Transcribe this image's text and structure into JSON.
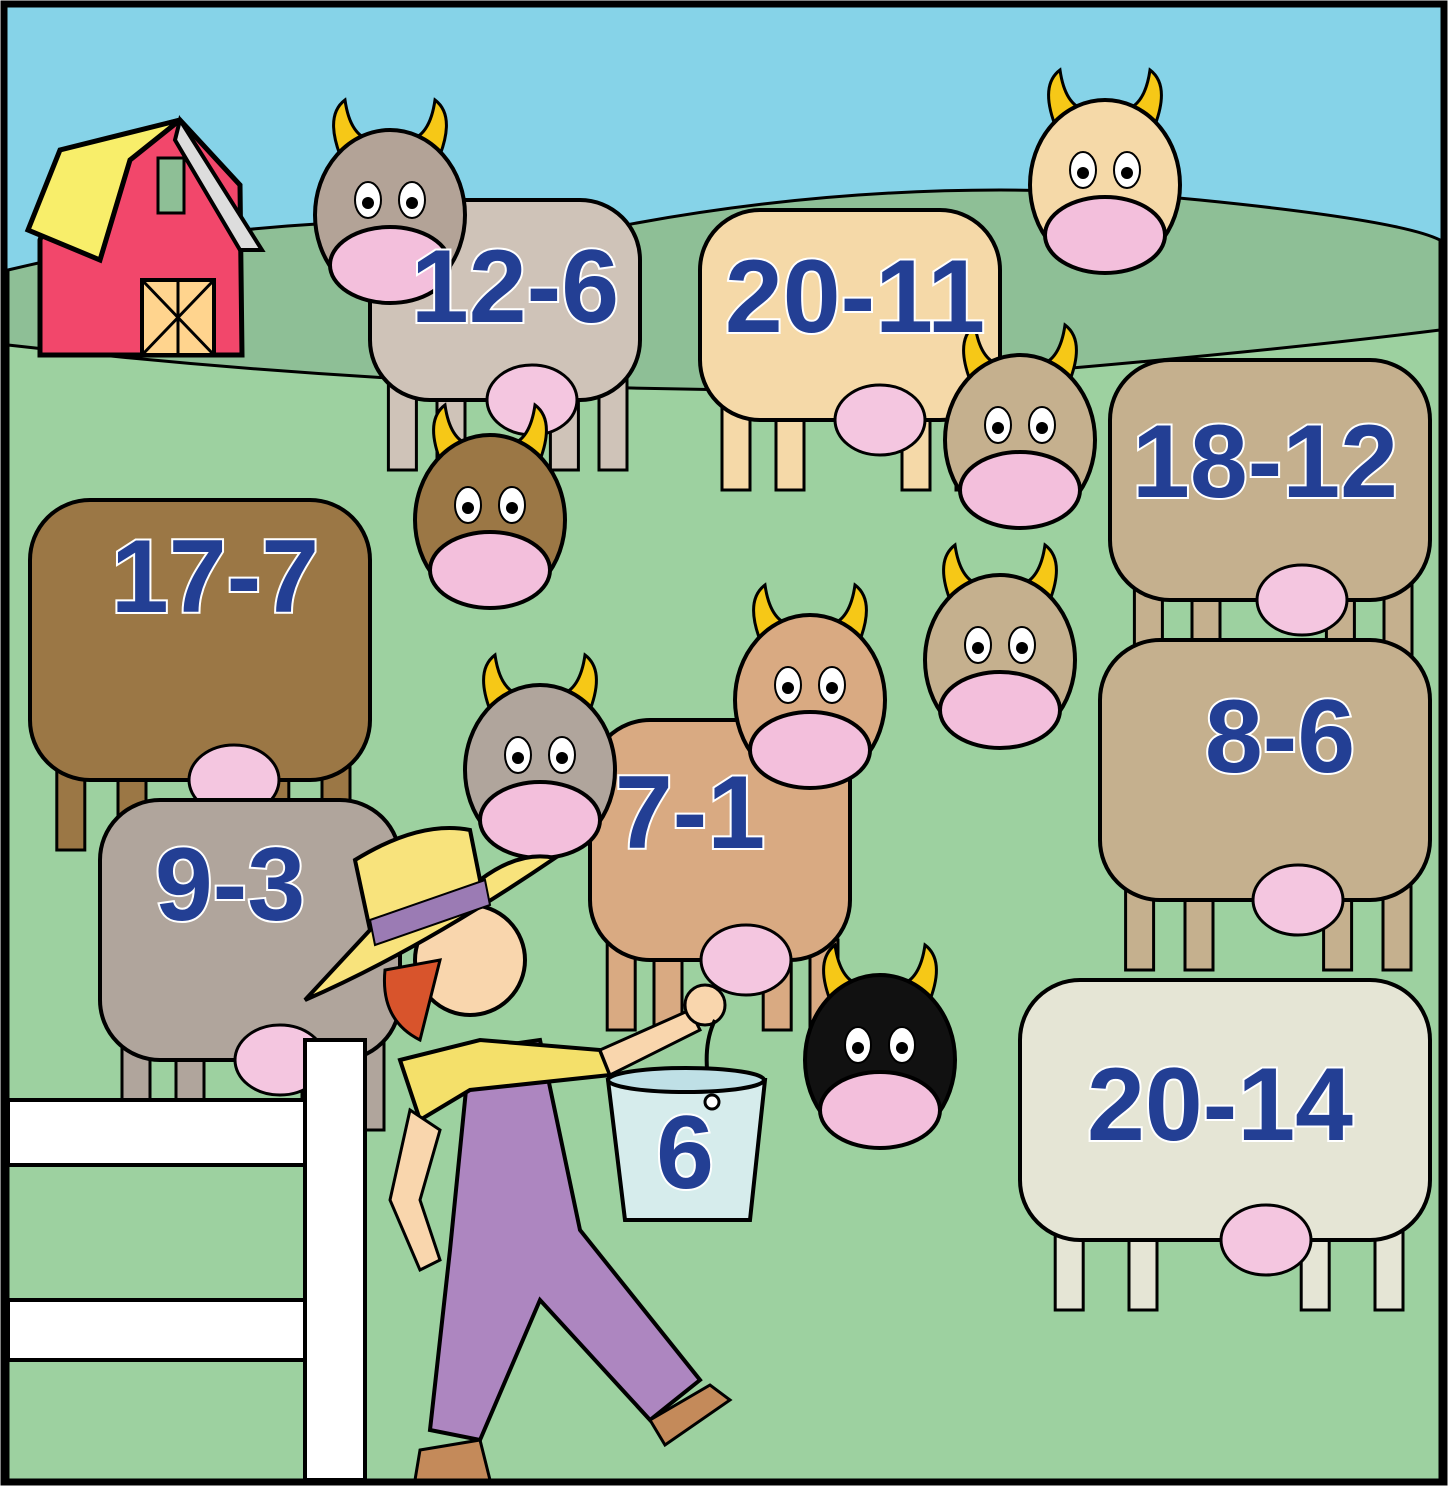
{
  "cows": [
    {
      "label": "12-6"
    },
    {
      "label": "20-11"
    },
    {
      "label": "18-12"
    },
    {
      "label": "17-7"
    },
    {
      "label": "8-6"
    },
    {
      "label": "7-1"
    },
    {
      "label": "9-3"
    },
    {
      "label": "20-14"
    }
  ],
  "bucket": {
    "label": "6"
  }
}
